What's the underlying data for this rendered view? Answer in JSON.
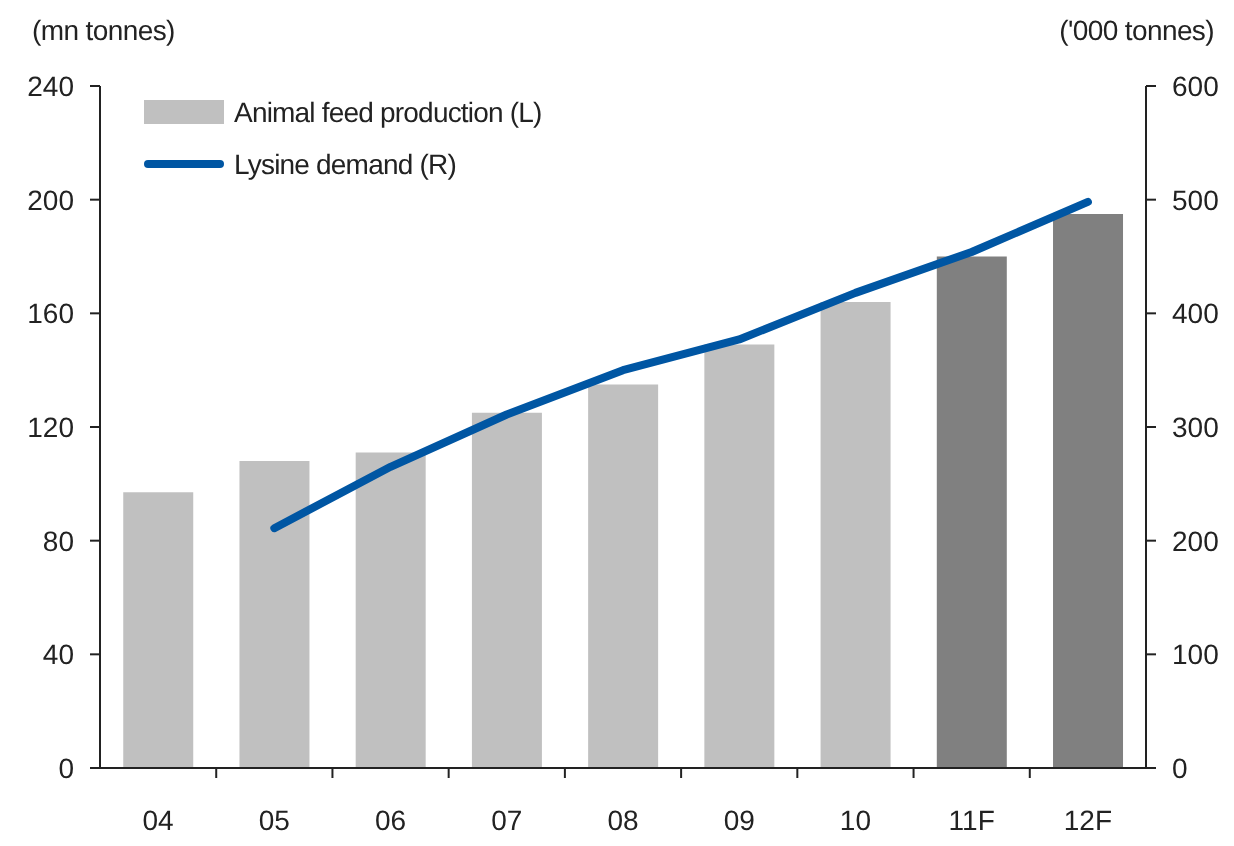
{
  "chart_data": {
    "type": "bar",
    "ylabel": "(mn tonnes)",
    "y2label": "('000 tonnes)",
    "categories": [
      "04",
      "05",
      "06",
      "07",
      "08",
      "09",
      "10",
      "11F",
      "12F"
    ],
    "series": [
      {
        "name": "Animal feed production (L)",
        "type": "bar",
        "color": "#c0c0c0",
        "colors": [
          "#c0c0c0",
          "#c0c0c0",
          "#c0c0c0",
          "#c0c0c0",
          "#c0c0c0",
          "#c0c0c0",
          "#c0c0c0",
          "#808080",
          "#808080"
        ],
        "values": [
          97,
          108,
          111,
          125,
          135,
          149,
          164,
          180,
          195
        ]
      },
      {
        "name": "Lysine demand (R)",
        "type": "line",
        "axis": "y2",
        "color": "#0056a3",
        "values": [
          null,
          211,
          265,
          311,
          350,
          377,
          418,
          454,
          498
        ]
      }
    ],
    "ylim": [
      0,
      240
    ],
    "yticks": [
      0,
      40,
      80,
      120,
      160,
      200,
      240
    ],
    "y2lim": [
      0,
      600
    ],
    "y2ticks": [
      0,
      100,
      200,
      300,
      400,
      500,
      600
    ],
    "grid": false,
    "legend": "top left",
    "marker": "none",
    "line_style": "solid"
  }
}
